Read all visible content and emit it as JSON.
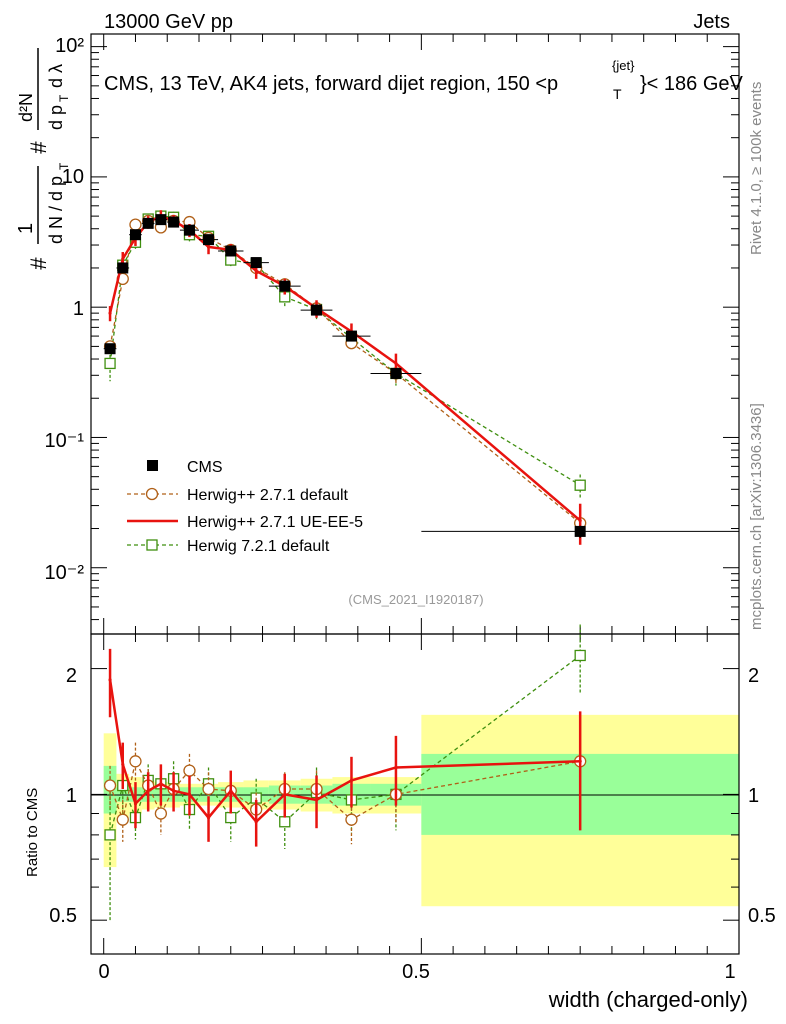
{
  "header": {
    "left": "13000 GeV pp",
    "right": "Jets",
    "title_main": "CMS, 13 TeV, AK4 jets, forward dijet region, 150 <p",
    "title_sub": "T",
    "title_sup": "{jet}",
    "title_end": "}< 186 GeV",
    "watermark": "(CMS_2021_I1920187)",
    "side_rivet": "Rivet 4.1.0, ≥ 100k events",
    "side_mcplots": "mcplots.cern.ch [arXiv:1306.3436]"
  },
  "axes": {
    "xlabel": "width (charged-only)",
    "ylabel_ratio": "Ratio to CMS",
    "ylabel_main": "# 1/(dN / dp_T) # d²N/(dp_T dλ)",
    "main_tick_labels": [
      "10²",
      "10",
      "1",
      "10⁻¹",
      "10⁻²"
    ],
    "ratio_tick_labels": [
      "2",
      "1",
      "0.5"
    ],
    "x_tick_labels": [
      "0",
      "0.5",
      "1"
    ]
  },
  "colors": {
    "data": "#000000",
    "herwig_default": "#b06018",
    "herwig_ueee5": "#e8130f",
    "herwig72": "#3f8f0f",
    "band_inner": "#99ff99",
    "band_outer": "#ffff99"
  },
  "chart_data": [
    {
      "type": "scatter",
      "panel": "main",
      "yscale": "log",
      "xlim": [
        -0.02,
        1.0
      ],
      "ylim": [
        0.0031,
        125
      ],
      "x": [
        0.01,
        0.03,
        0.05,
        0.07,
        0.09,
        0.11,
        0.135,
        0.165,
        0.2,
        0.24,
        0.285,
        0.335,
        0.39,
        0.46,
        0.75
      ],
      "xerr": [
        0.01,
        0.01,
        0.01,
        0.01,
        0.01,
        0.01,
        0.015,
        0.015,
        0.02,
        0.02,
        0.025,
        0.025,
        0.03,
        0.04,
        0.25
      ],
      "series": [
        {
          "name": "CMS",
          "values": [
            0.48,
            2.0,
            3.6,
            4.4,
            4.7,
            4.5,
            3.9,
            3.3,
            2.7,
            2.2,
            1.45,
            0.95,
            0.6,
            0.31,
            0.019
          ],
          "err": [
            0.04,
            0.15,
            0.25,
            0.3,
            0.3,
            0.3,
            0.25,
            0.2,
            0.2,
            0.15,
            0.1,
            0.08,
            0.05,
            0.03,
            0.002
          ]
        },
        {
          "name": "Herwig++ 2.7.1 default",
          "values": [
            0.5,
            1.65,
            4.3,
            4.6,
            4.1,
            4.6,
            4.5,
            3.4,
            2.75,
            2.0,
            1.5,
            0.98,
            0.53,
            0.31,
            0.022
          ],
          "err": [
            0.05,
            0.15,
            0.4,
            0.4,
            0.4,
            0.4,
            0.4,
            0.3,
            0.25,
            0.2,
            0.15,
            0.1,
            0.07,
            0.05,
            0.004
          ]
        },
        {
          "name": "Herwig++ 2.7.1 UE-EE-5",
          "values": [
            0.9,
            2.35,
            3.4,
            4.5,
            5.0,
            4.6,
            3.9,
            2.9,
            2.75,
            1.9,
            1.45,
            0.98,
            0.65,
            0.37,
            0.023
          ],
          "err": [
            0.12,
            0.3,
            0.45,
            0.5,
            0.55,
            0.5,
            0.45,
            0.35,
            0.3,
            0.25,
            0.2,
            0.15,
            0.1,
            0.07,
            0.008
          ]
        },
        {
          "name": "Herwig 7.2.1 default",
          "values": [
            0.37,
            2.1,
            3.15,
            4.75,
            5.0,
            4.9,
            3.6,
            3.5,
            2.3,
            2.15,
            1.2,
            0.96,
            0.58,
            0.31,
            0.043
          ],
          "err": [
            0.1,
            0.3,
            0.35,
            0.45,
            0.5,
            0.5,
            0.4,
            0.35,
            0.3,
            0.25,
            0.2,
            0.15,
            0.1,
            0.06,
            0.009
          ]
        }
      ]
    },
    {
      "type": "scatter",
      "panel": "ratio",
      "yscale": "log",
      "ylabel": "Ratio to CMS",
      "xlabel": "width (charged-only)",
      "xlim": [
        -0.02,
        1.0
      ],
      "ylim": [
        0.415,
        2.42
      ],
      "band_edges": [
        0.0,
        0.02,
        0.04,
        0.06,
        0.08,
        0.1,
        0.12,
        0.15,
        0.18,
        0.22,
        0.26,
        0.31,
        0.36,
        0.42,
        0.5,
        1.0
      ],
      "band_inner": [
        [
          0.9,
          1.17
        ],
        [
          0.96,
          1.04
        ],
        [
          0.96,
          1.04
        ],
        [
          0.96,
          1.04
        ],
        [
          0.96,
          1.04
        ],
        [
          0.96,
          1.04
        ],
        [
          0.96,
          1.04
        ],
        [
          0.96,
          1.04
        ],
        [
          0.96,
          1.04
        ],
        [
          0.96,
          1.04
        ],
        [
          0.95,
          1.05
        ],
        [
          0.95,
          1.05
        ],
        [
          0.94,
          1.06
        ],
        [
          0.94,
          1.06
        ],
        [
          0.8,
          1.25
        ]
      ],
      "band_outer": [
        [
          0.67,
          1.4
        ],
        [
          0.88,
          1.12
        ],
        [
          0.9,
          1.1
        ],
        [
          0.92,
          1.08
        ],
        [
          0.93,
          1.07
        ],
        [
          0.93,
          1.07
        ],
        [
          0.94,
          1.06
        ],
        [
          0.94,
          1.06
        ],
        [
          0.93,
          1.07
        ],
        [
          0.92,
          1.08
        ],
        [
          0.92,
          1.08
        ],
        [
          0.91,
          1.09
        ],
        [
          0.9,
          1.1
        ],
        [
          0.9,
          1.1
        ],
        [
          0.54,
          1.55
        ]
      ],
      "series": [
        {
          "name": "Herwig++ 2.7.1 default",
          "values": [
            1.05,
            0.87,
            1.2,
            1.05,
            0.9,
            1.03,
            1.14,
            1.03,
            1.02,
            0.92,
            1.03,
            1.03,
            0.87,
            1.0,
            1.2
          ],
          "err": [
            0.12,
            0.1,
            0.13,
            0.1,
            0.1,
            0.1,
            0.11,
            0.1,
            0.1,
            0.09,
            0.1,
            0.11,
            0.11,
            0.15,
            0.35
          ]
        },
        {
          "name": "Herwig++ 2.7.1 UE-EE-5",
          "values": [
            1.88,
            1.18,
            0.95,
            1.02,
            1.06,
            1.02,
            1.0,
            0.88,
            1.02,
            0.86,
            1.0,
            0.97,
            1.08,
            1.16,
            1.2
          ],
          "err": [
            0.35,
            0.15,
            0.12,
            0.11,
            0.12,
            0.11,
            0.11,
            0.11,
            0.12,
            0.11,
            0.12,
            0.14,
            0.15,
            0.22,
            0.38
          ]
        },
        {
          "name": "Herwig 7.2.1 default",
          "values": [
            0.8,
            1.05,
            0.88,
            1.08,
            1.06,
            1.09,
            0.92,
            1.06,
            0.88,
            0.98,
            0.86,
            1.01,
            0.97,
            1.0,
            2.15
          ],
          "err": [
            0.3,
            0.15,
            0.1,
            0.1,
            0.11,
            0.11,
            0.1,
            0.1,
            0.11,
            0.11,
            0.12,
            0.15,
            0.16,
            0.18,
            0.4
          ]
        }
      ]
    }
  ],
  "legend": {
    "items": [
      {
        "label": "CMS"
      },
      {
        "label": "Herwig++ 2.7.1 default"
      },
      {
        "label": "Herwig++ 2.7.1 UE-EE-5"
      },
      {
        "label": "Herwig 7.2.1 default"
      }
    ],
    "placement": "lower-left"
  }
}
